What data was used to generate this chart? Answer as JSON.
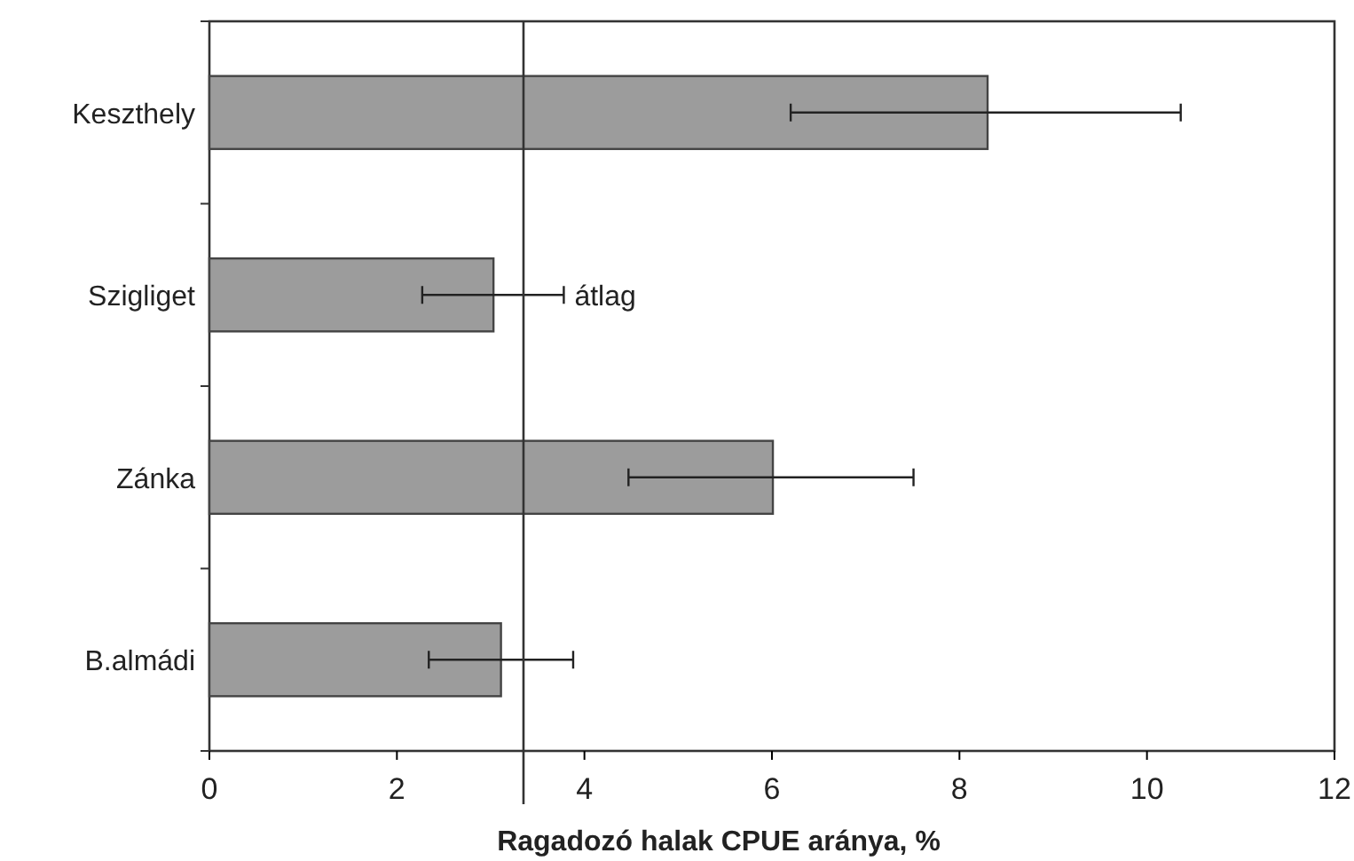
{
  "chart_data": {
    "type": "bar",
    "orientation": "horizontal",
    "xlabel": "Ragadozó halak CPUE aránya, %",
    "categories": [
      "Keszthely",
      "Szigliget",
      "Zánka",
      "B.almádi"
    ],
    "values": [
      8.3,
      3.03,
      6.01,
      3.11
    ],
    "errors": [
      [
        6.2,
        10.36
      ],
      [
        2.27,
        3.78
      ],
      [
        4.47,
        7.51
      ],
      [
        2.34,
        3.88
      ]
    ],
    "color": "#9c9c9c",
    "xlim": [
      0,
      12
    ],
    "xticks": [
      0,
      2,
      4,
      6,
      8,
      10,
      12
    ],
    "ref_lines": [
      {
        "axis": "x",
        "value": 3.35,
        "label": "átlag",
        "color": "#333333"
      }
    ]
  }
}
